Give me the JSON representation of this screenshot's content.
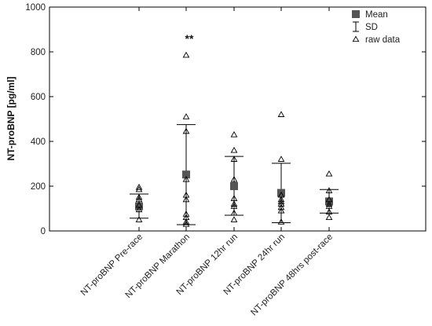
{
  "chart_data": {
    "type": "scatter",
    "ylabel": "NT-proBNP [pg/ml]",
    "ylim": [
      0,
      1000
    ],
    "yticks": [
      0,
      200,
      400,
      600,
      800,
      1000
    ],
    "categories": [
      "NT-proBNP Pre-race",
      "NT-proBNP Marathon",
      "NT-proBNP 12hr run",
      "NT-proBNP 24hr run",
      "NT-proBNP 48hrs post-race"
    ],
    "series": [
      {
        "name": "Mean",
        "marker": "square",
        "values": [
          110,
          252,
          200,
          170,
          132
        ]
      },
      {
        "name": "SD",
        "marker": "errorbar",
        "lower": [
          57,
          28,
          70,
          37,
          80
        ],
        "upper": [
          165,
          475,
          333,
          302,
          185
        ]
      },
      {
        "name": "raw data",
        "marker": "triangle",
        "points": [
          [
            [
              0,
              195
            ],
            [
              0,
              185
            ],
            [
              0,
              150
            ],
            [
              0,
              140
            ],
            [
              0,
              115
            ],
            [
              0,
              95
            ],
            [
              0,
              50
            ]
          ],
          [
            [
              1,
              785
            ],
            [
              1,
              510
            ],
            [
              1,
              445
            ],
            [
              1,
              230
            ],
            [
              1,
              160
            ],
            [
              1,
              140
            ],
            [
              1,
              75
            ],
            [
              1,
              60
            ],
            [
              1,
              40
            ],
            [
              1,
              30
            ]
          ],
          [
            [
              2,
              430
            ],
            [
              2,
              360
            ],
            [
              2,
              320
            ],
            [
              2,
              230
            ],
            [
              2,
              145
            ],
            [
              2,
              120
            ],
            [
              2,
              110
            ],
            [
              2,
              80
            ],
            [
              2,
              50
            ]
          ],
          [
            [
              3,
              520
            ],
            [
              3,
              320
            ],
            [
              3,
              160
            ],
            [
              3,
              140
            ],
            [
              3,
              130
            ],
            [
              3,
              120
            ],
            [
              3,
              105
            ],
            [
              3,
              90
            ],
            [
              3,
              40
            ]
          ],
          [
            [
              4,
              255
            ],
            [
              4,
              180
            ],
            [
              4,
              140
            ],
            [
              4,
              120
            ],
            [
              4,
              110
            ],
            [
              4,
              85
            ],
            [
              4,
              60
            ]
          ]
        ]
      }
    ],
    "annotations": [
      {
        "text": "**",
        "category": 1
      }
    ],
    "legend": {
      "position": "top-right",
      "items": [
        "Mean",
        "SD",
        "raw data"
      ]
    },
    "grid": false
  }
}
